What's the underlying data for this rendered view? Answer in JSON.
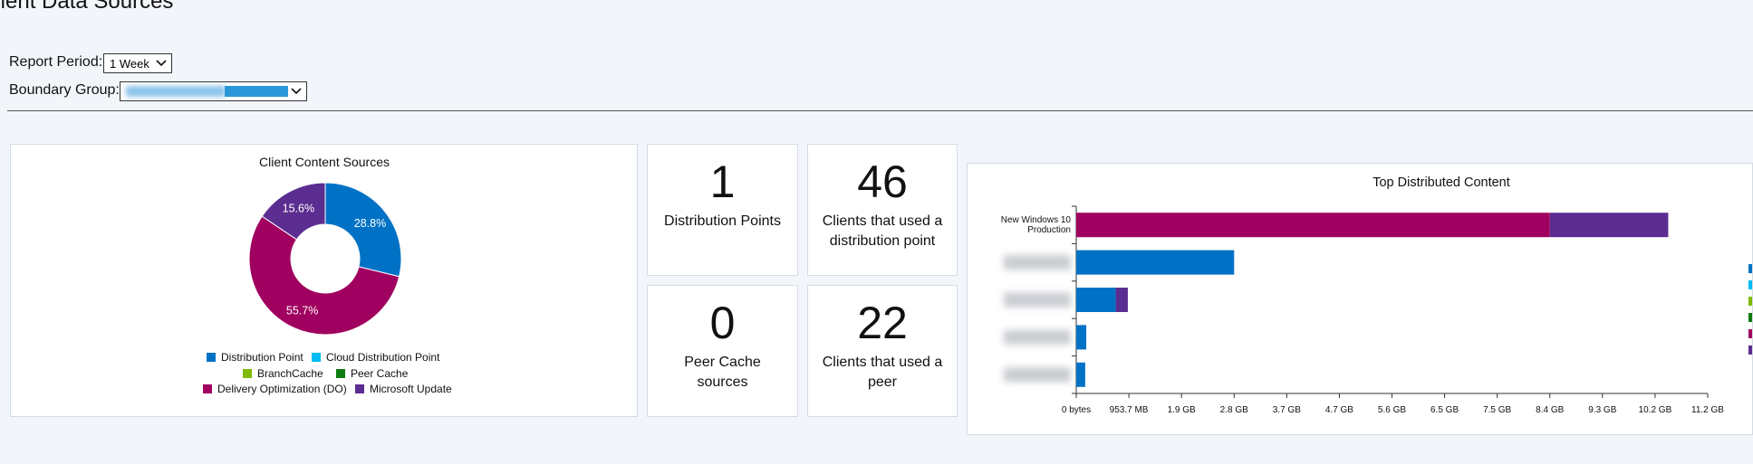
{
  "page": {
    "title": "Client Data Sources",
    "report_period_label": "Report Period:",
    "report_period_value": "1 Week",
    "boundary_group_label": "Boundary Group:"
  },
  "tiles": [
    {
      "value": "1",
      "label": "Distribution Points"
    },
    {
      "value": "46",
      "label": "Clients that used a distribution point"
    },
    {
      "value": "0",
      "label": "Peer Cache sources"
    },
    {
      "value": "22",
      "label": "Clients that used a peer"
    }
  ],
  "chart_data": [
    {
      "type": "pie",
      "title": "Client Content Sources",
      "categories": [
        "Distribution Point",
        "Cloud Distribution Point",
        "BranchCache",
        "Peer Cache",
        "Delivery Optimization (DO)",
        "Microsoft Update"
      ],
      "values": [
        28.8,
        0,
        0,
        0,
        55.7,
        15.6
      ],
      "value_labels": [
        "28.8%",
        null,
        null,
        null,
        "55.7%",
        "15.6%"
      ],
      "colors": [
        "#0072c6",
        "#00bcf2",
        "#7fba00",
        "#107c10",
        "#a0005f",
        "#5c2d91"
      ]
    },
    {
      "type": "hbar-stacked",
      "title": "Top Distributed Content",
      "categories": [
        "New Windows 10 Production",
        null,
        null,
        null,
        null
      ],
      "series": [
        {
          "color": "#0072c6",
          "values": [
            0,
            3000000000,
            750000000,
            190000000,
            170000000
          ]
        },
        {
          "color": "#00bcf2",
          "values": [
            0,
            0,
            0,
            0,
            0
          ]
        },
        {
          "color": "#7fba00",
          "values": [
            0,
            0,
            0,
            0,
            0
          ]
        },
        {
          "color": "#107c10",
          "values": [
            0,
            0,
            0,
            0,
            0
          ]
        },
        {
          "color": "#a0005f",
          "values": [
            9000000000,
            0,
            0,
            0,
            0
          ]
        },
        {
          "color": "#5c2d91",
          "values": [
            2250000000,
            0,
            230000000,
            0,
            0
          ]
        }
      ],
      "xlim": [
        0,
        12000000000
      ],
      "xticks": [
        {
          "value": 0,
          "label": "0 bytes"
        },
        {
          "value": 1000000000,
          "label": "953.7 MB"
        },
        {
          "value": 2000000000,
          "label": "1.9 GB"
        },
        {
          "value": 3000000000,
          "label": "2.8 GB"
        },
        {
          "value": 4000000000,
          "label": "3.7 GB"
        },
        {
          "value": 5000000000,
          "label": "4.7 GB"
        },
        {
          "value": 6000000000,
          "label": "5.6 GB"
        },
        {
          "value": 7000000000,
          "label": "6.5 GB"
        },
        {
          "value": 8000000000,
          "label": "7.5 GB"
        },
        {
          "value": 9000000000,
          "label": "8.4 GB"
        },
        {
          "value": 10000000000,
          "label": "9.3 GB"
        },
        {
          "value": 11000000000,
          "label": "10.2 GB"
        },
        {
          "value": 12000000000,
          "label": "11.2 GB"
        }
      ]
    }
  ]
}
